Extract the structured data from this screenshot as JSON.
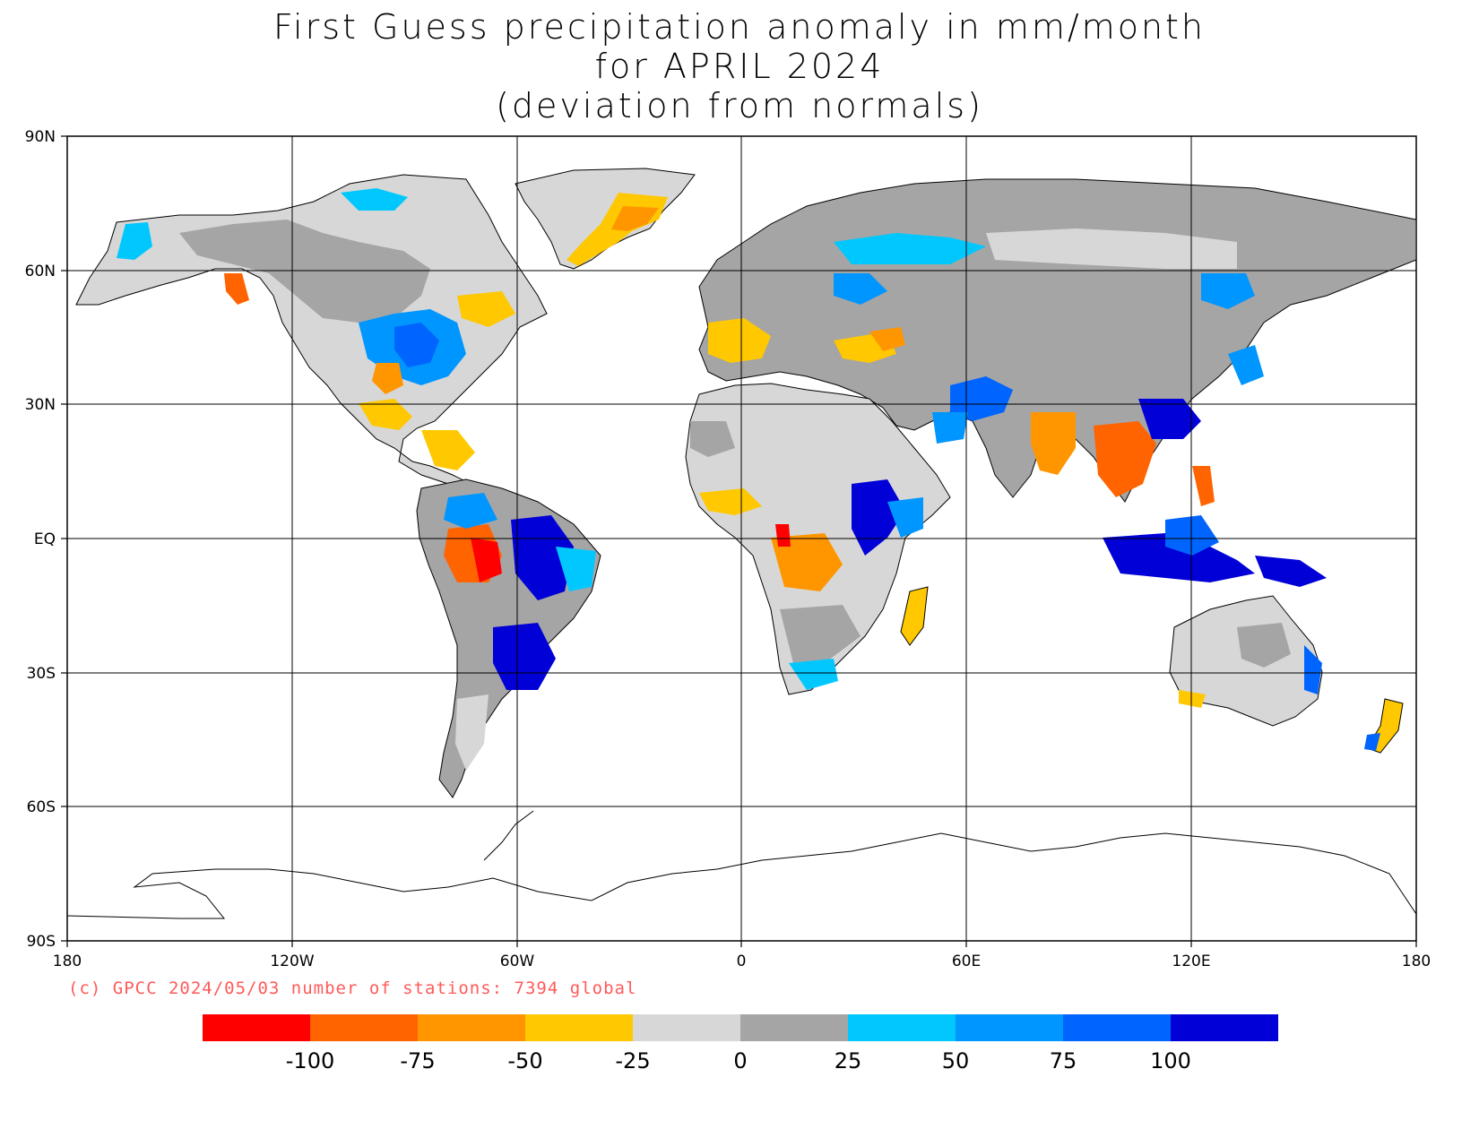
{
  "title": {
    "line1": "First Guess precipitation anomaly in mm/month",
    "line2": "for APRIL 2024",
    "line3": "(deviation from normals)"
  },
  "credit": "(c) GPCC 2024/05/03 number of stations: 7394 global",
  "lat_labels": [
    "90N",
    "60N",
    "30N",
    "EQ",
    "30S",
    "60S",
    "90S"
  ],
  "lon_labels": [
    "180",
    "120W",
    "60W",
    "0",
    "60E",
    "120E",
    "180"
  ],
  "colorbar": {
    "colors": [
      "#ff0000",
      "#ff6400",
      "#ff9600",
      "#ffc800",
      "#d7d7d7",
      "#a5a5a5",
      "#00c8ff",
      "#0096ff",
      "#0064ff",
      "#0000d7"
    ],
    "labels": [
      "-100",
      "-75",
      "-50",
      "-25",
      "0",
      "25",
      "50",
      "75",
      "100"
    ]
  },
  "colors": {
    "land_default": "#d7d7d7",
    "coastline": "#000000"
  }
}
